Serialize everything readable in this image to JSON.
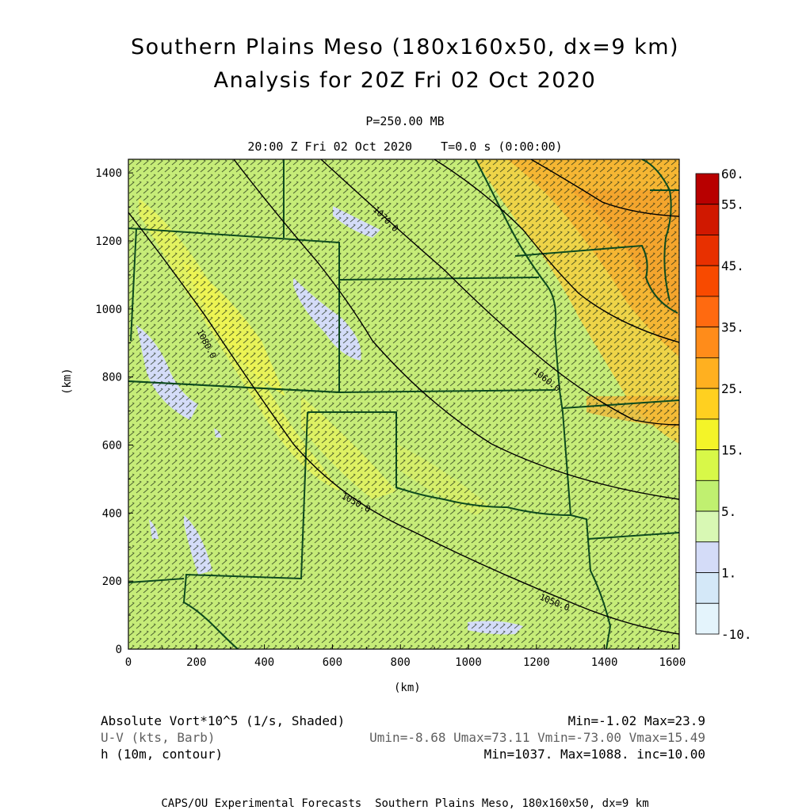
{
  "header": {
    "title_line1": "Southern Plains Meso (180x160x50, dx=9 km)",
    "title_line2": "Analysis for 20Z Fri 02 Oct 2020",
    "level": "P=250.00 MB",
    "time": "20:00 Z Fri 02 Oct 2020    T=0.0 s (0:00:00)"
  },
  "axes": {
    "x_label": "(km)",
    "y_label": "(km)",
    "x_ticks": [
      "0",
      "200",
      "400",
      "600",
      "800",
      "1000",
      "1200",
      "1400",
      "1600"
    ],
    "y_ticks": [
      "0",
      "200",
      "400",
      "600",
      "800",
      "1000",
      "1200",
      "1400"
    ],
    "x_range": [
      0,
      1620
    ],
    "y_range": [
      0,
      1440
    ]
  },
  "colorbar": {
    "labels": [
      "60.",
      "55.",
      "45.",
      "35.",
      "25.",
      "15.",
      "5.",
      "1.",
      "-10."
    ],
    "colors": [
      "#b80000",
      "#d01800",
      "#e83000",
      "#f84a00",
      "#ff6a10",
      "#ff8c1a",
      "#ffb020",
      "#ffd020",
      "#f4f428",
      "#d8f848",
      "#c0f070",
      "#d8f8b4",
      "#d4dcf8",
      "#d4e8f8",
      "#e4f4fc"
    ]
  },
  "contours": [
    {
      "label": "1080.0"
    },
    {
      "label": "1070.0"
    },
    {
      "label": "1060.0"
    },
    {
      "label": "1050.0"
    },
    {
      "label": "1050.0"
    }
  ],
  "legend": {
    "field1": "Absolute Vort*10^5 (1/s, Shaded)",
    "field1_stats": "Min=-1.02 Max=23.9",
    "field2": "U-V (kts, Barb)",
    "field2_stats": "Umin=-8.68 Umax=73.11 Vmin=-73.00 Vmax=15.49",
    "field3": "h (10m, contour)",
    "field3_stats": "Min=1037. Max=1088. inc=10.00"
  },
  "credit": "CAPS/OU Experimental Forecasts  Southern Plains Meso, 180x160x50, dx=9 km",
  "colors": {
    "field_base": "#c6ec78",
    "border": "#0d4a1e",
    "contour": "#000000",
    "barb": "#1a2a12",
    "field2_text": "#606060"
  }
}
